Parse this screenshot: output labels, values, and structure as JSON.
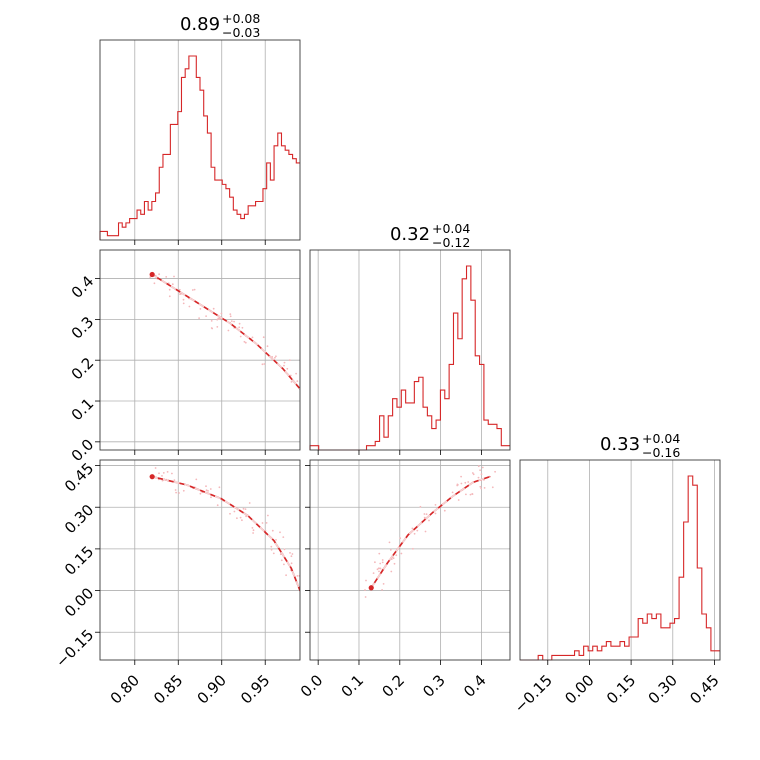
{
  "chart_data": {
    "type": "corner",
    "color": "#d62728",
    "light_color": "#f4b8bb",
    "grid": true,
    "parameters": [
      {
        "title_value": "0.89",
        "title_plus": "+0.08",
        "title_minus": "−0.03",
        "range": [
          0.76,
          0.99
        ],
        "ticks": [
          0.8,
          0.85,
          0.9,
          0.95
        ],
        "tick_labels": [
          "0.80",
          "0.85",
          "0.90",
          "0.95"
        ],
        "hist_edges_range": [
          0.76,
          0.99
        ],
        "hist_heights": [
          2,
          2,
          1,
          1,
          1,
          4,
          3,
          4,
          5,
          5,
          7,
          6,
          9,
          7,
          9,
          11,
          17,
          20,
          20,
          27,
          27,
          30,
          38,
          40,
          43,
          43,
          38,
          35,
          29,
          25,
          17,
          14,
          14,
          13,
          12,
          10,
          7,
          6,
          5,
          6,
          8,
          8,
          9,
          9,
          12,
          18,
          14,
          22,
          25,
          22,
          21,
          20,
          19,
          18
        ]
      },
      {
        "title_value": "0.32",
        "title_plus": "+0.04",
        "title_minus": "−0.12",
        "range": [
          -0.02,
          0.47
        ],
        "ticks": [
          0.0,
          0.1,
          0.2,
          0.3,
          0.4
        ],
        "tick_labels": [
          "0.0",
          "0.1",
          "0.2",
          "0.3",
          "0.4"
        ],
        "hist_edges_range": [
          -0.02,
          0.47
        ],
        "hist_heights": [
          1,
          1,
          0,
          0,
          0,
          0,
          0,
          0,
          0,
          0,
          0,
          0,
          0,
          1,
          1,
          2,
          8,
          3,
          8,
          12,
          10,
          14,
          11,
          11,
          16,
          17,
          10,
          8,
          5,
          7,
          14,
          12,
          20,
          32,
          26,
          40,
          43,
          35,
          22,
          20,
          7,
          6,
          6,
          5,
          1,
          1
        ]
      },
      {
        "title_value": "0.33",
        "title_plus": "+0.04",
        "title_minus": "−0.16",
        "range": [
          -0.25,
          0.47
        ],
        "ticks": [
          -0.15,
          0.0,
          0.15,
          0.3,
          0.45
        ],
        "tick_labels": [
          "−0.15",
          "0.00",
          "0.15",
          "0.30",
          "0.45"
        ],
        "hist_edges_range": [
          -0.25,
          0.47
        ],
        "hist_heights": [
          0,
          0,
          0,
          0,
          1,
          0,
          0,
          1,
          1,
          1,
          1,
          1,
          2,
          1,
          3,
          2,
          3,
          2,
          3,
          4,
          3,
          3,
          4,
          3,
          5,
          5,
          9,
          8,
          10,
          9,
          10,
          7,
          7,
          8,
          9,
          18,
          30,
          40,
          38,
          20,
          10,
          7,
          2,
          2
        ]
      }
    ],
    "row1_ticks": [
      0.0,
      0.1,
      0.2,
      0.3,
      0.4
    ],
    "row1_tick_labels": [
      "0.0",
      "0.1",
      "0.2",
      "0.3",
      "0.4"
    ],
    "row2_ticks": [
      -0.15,
      0.0,
      0.15,
      0.3,
      0.45
    ],
    "row2_tick_labels": [
      "−0.15",
      "0.00",
      "0.15",
      "0.30",
      "0.45"
    ],
    "pair_curves": {
      "p1_vs_p0": [
        [
          0.82,
          0.41
        ],
        [
          0.85,
          0.37
        ],
        [
          0.88,
          0.33
        ],
        [
          0.91,
          0.29
        ],
        [
          0.94,
          0.24
        ],
        [
          0.97,
          0.18
        ],
        [
          0.99,
          0.13
        ]
      ],
      "p2_vs_p0": [
        [
          0.82,
          0.41
        ],
        [
          0.86,
          0.38
        ],
        [
          0.9,
          0.33
        ],
        [
          0.93,
          0.27
        ],
        [
          0.96,
          0.18
        ],
        [
          0.98,
          0.08
        ],
        [
          0.99,
          0.0
        ]
      ],
      "p2_vs_p1": [
        [
          0.13,
          0.01
        ],
        [
          0.17,
          0.1
        ],
        [
          0.22,
          0.2
        ],
        [
          0.28,
          0.28
        ],
        [
          0.33,
          0.34
        ],
        [
          0.38,
          0.39
        ],
        [
          0.42,
          0.41
        ]
      ]
    }
  }
}
